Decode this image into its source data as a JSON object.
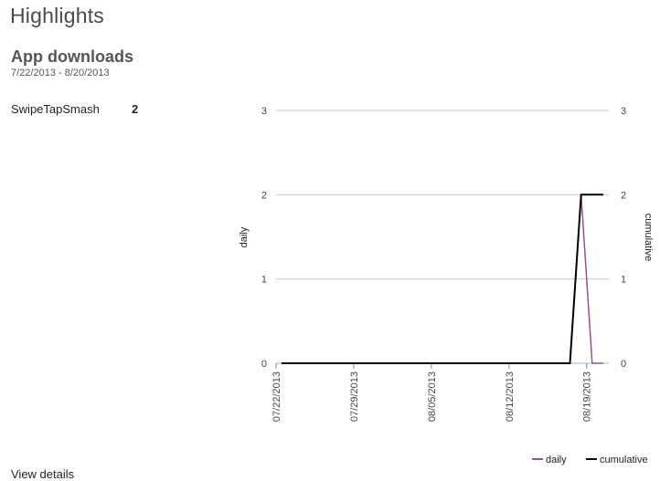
{
  "page": {
    "title": "Highlights"
  },
  "section": {
    "title": "App downloads",
    "date_range": "7/22/2013 - 8/20/2013"
  },
  "apps": [
    {
      "name": "SwipeTapSmash",
      "downloads": "2"
    }
  ],
  "footer_partial_text": "View details",
  "colors": {
    "daily": "#9b4f96",
    "cumulative": "#000000",
    "grid": "#c8c8c8"
  },
  "chart_data": {
    "type": "line",
    "x_type": "date",
    "x": [
      "2013-07-22",
      "2013-07-23",
      "2013-07-24",
      "2013-07-25",
      "2013-07-26",
      "2013-07-27",
      "2013-07-28",
      "2013-07-29",
      "2013-07-30",
      "2013-07-31",
      "2013-08-01",
      "2013-08-02",
      "2013-08-03",
      "2013-08-04",
      "2013-08-05",
      "2013-08-06",
      "2013-08-07",
      "2013-08-08",
      "2013-08-09",
      "2013-08-10",
      "2013-08-11",
      "2013-08-12",
      "2013-08-13",
      "2013-08-14",
      "2013-08-15",
      "2013-08-16",
      "2013-08-17",
      "2013-08-18",
      "2013-08-19",
      "2013-08-20"
    ],
    "series": [
      {
        "name": "daily",
        "axis": "left",
        "color": "#9b4f96",
        "values": [
          0,
          0,
          0,
          0,
          0,
          0,
          0,
          0,
          0,
          0,
          0,
          0,
          0,
          0,
          0,
          0,
          0,
          0,
          0,
          0,
          0,
          0,
          0,
          0,
          0,
          0,
          0,
          2,
          0,
          0
        ]
      },
      {
        "name": "cumulative",
        "axis": "right",
        "color": "#000000",
        "values": [
          0,
          0,
          0,
          0,
          0,
          0,
          0,
          0,
          0,
          0,
          0,
          0,
          0,
          0,
          0,
          0,
          0,
          0,
          0,
          0,
          0,
          0,
          0,
          0,
          0,
          0,
          0,
          2,
          2,
          2
        ]
      }
    ],
    "xticks": [
      "07/22/2013",
      "07/29/2013",
      "08/05/2013",
      "08/12/2013",
      "08/19/2013"
    ],
    "ylabel": "daily",
    "y2label": "cumulative",
    "ylim": [
      0,
      3
    ],
    "y2lim": [
      0,
      3
    ],
    "yticks": [
      0,
      1,
      2,
      3
    ],
    "grid": true,
    "legend": "bottom-right"
  }
}
